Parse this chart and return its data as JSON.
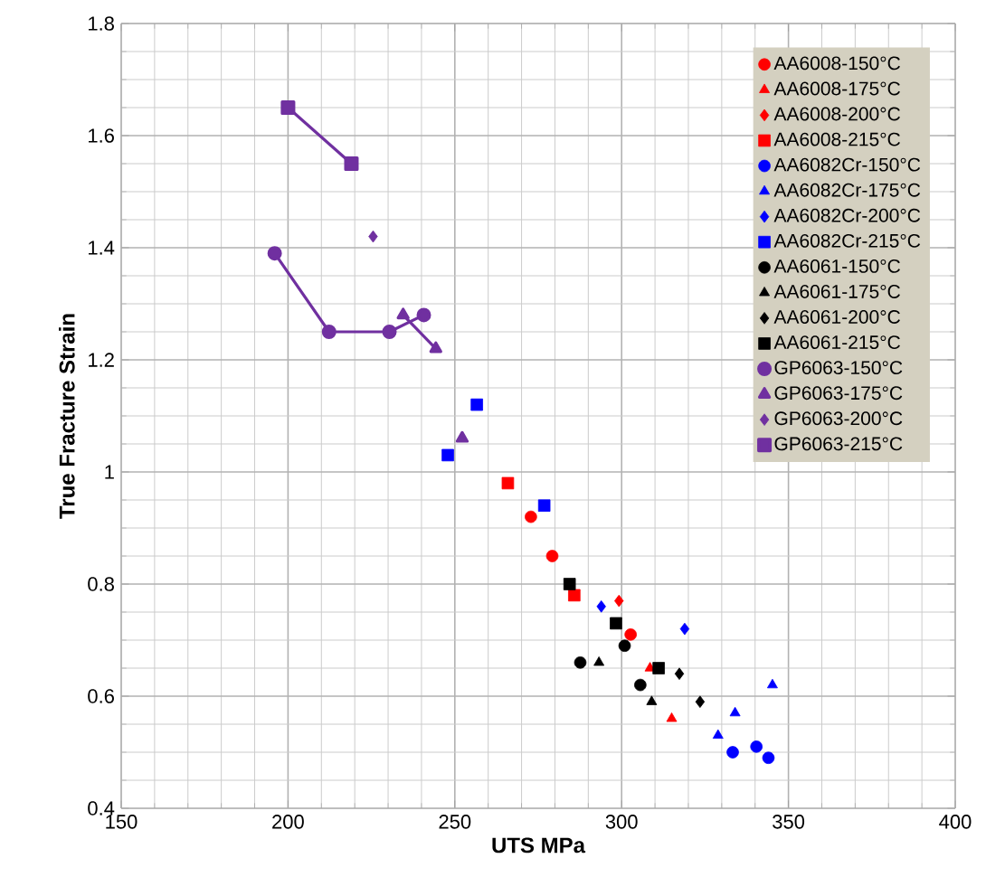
{
  "chart_data": {
    "type": "scatter",
    "xlabel": "UTS MPa",
    "ylabel": "True Fracture Strain",
    "xlim": [
      150,
      400
    ],
    "xticks": [
      150,
      200,
      250,
      300,
      350,
      400
    ],
    "ylim": [
      0.4,
      1.8
    ],
    "yticks": [
      0.4,
      0.6,
      0.8,
      1,
      1.2,
      1.4,
      1.6,
      1.8
    ],
    "grid": true,
    "legend": "top right",
    "series": [
      {
        "name": "AA6008-150°C",
        "color": "#ff0000",
        "marker": "circle",
        "x": [
          272.8,
          279.2,
          302.7
        ],
        "values": [
          0.92,
          0.85,
          0.71
        ]
      },
      {
        "name": "AA6008-175°C",
        "color": "#ff0000",
        "marker": "triangle",
        "x": [
          308.5,
          315
        ],
        "values": [
          0.65,
          0.56
        ]
      },
      {
        "name": "AA6008-200°C",
        "color": "#ff0000",
        "marker": "diamond",
        "x": [
          299.2
        ],
        "values": [
          0.77
        ]
      },
      {
        "name": "AA6008-215°C",
        "color": "#ff0000",
        "marker": "square",
        "x": [
          265.9,
          285.8
        ],
        "values": [
          0.98,
          0.78
        ]
      },
      {
        "name": "AA6082Cr-150°C",
        "color": "#0000ff",
        "marker": "circle",
        "x": [
          333.3,
          340.4,
          344
        ],
        "values": [
          0.5,
          0.51,
          0.49
        ]
      },
      {
        "name": "AA6082Cr-175°C",
        "color": "#0000ff",
        "marker": "triangle",
        "x": [
          328.9,
          334,
          345.2
        ],
        "values": [
          0.53,
          0.57,
          0.62
        ]
      },
      {
        "name": "AA6082Cr-200°C",
        "color": "#0000ff",
        "marker": "diamond",
        "x": [
          293.9,
          318.9
        ],
        "values": [
          0.76,
          0.72
        ]
      },
      {
        "name": "AA6082Cr-215°C",
        "color": "#0000ff",
        "marker": "square",
        "x": [
          247.9,
          256.6,
          276.8
        ],
        "values": [
          1.03,
          1.12,
          0.94
        ]
      },
      {
        "name": "AA6061-150°C",
        "color": "#000000",
        "marker": "circle",
        "x": [
          287.6,
          300.9,
          305.6
        ],
        "values": [
          0.66,
          0.69,
          0.62
        ]
      },
      {
        "name": "AA6061-175°C",
        "color": "#000000",
        "marker": "triangle",
        "x": [
          293.2,
          309
        ],
        "values": [
          0.66,
          0.59
        ]
      },
      {
        "name": "AA6061-200°C",
        "color": "#000000",
        "marker": "diamond",
        "x": [
          317.3,
          323.5
        ],
        "values": [
          0.64,
          0.59
        ]
      },
      {
        "name": "AA6061-215°C",
        "color": "#000000",
        "marker": "square",
        "x": [
          284.4,
          298.3,
          311.1
        ],
        "values": [
          0.8,
          0.73,
          0.65
        ]
      },
      {
        "name": "GP6063-150°C",
        "type": "line",
        "color": "#7030a0",
        "marker": "circle",
        "line_style": "solid",
        "x": [
          196,
          212.3,
          230.4,
          240.7
        ],
        "values": [
          1.39,
          1.25,
          1.25,
          1.28
        ]
      },
      {
        "name": "GP6063-175°C",
        "type": "line",
        "color": "#7030a0",
        "marker": "triangle",
        "line_style": "solid",
        "x": [
          234.5,
          244.3,
          248,
          252.2
        ],
        "values": [
          1.28,
          1.22,
          null,
          1.06
        ]
      },
      {
        "name": "GP6063-200°C",
        "color": "#7030a0",
        "marker": "diamond",
        "x": [
          225.5
        ],
        "values": [
          1.42
        ]
      },
      {
        "name": "GP6063-215°C",
        "type": "line",
        "color": "#7030a0",
        "marker": "square",
        "line_style": "solid",
        "x": [
          200,
          219
        ],
        "values": [
          1.65,
          1.55
        ]
      }
    ]
  }
}
